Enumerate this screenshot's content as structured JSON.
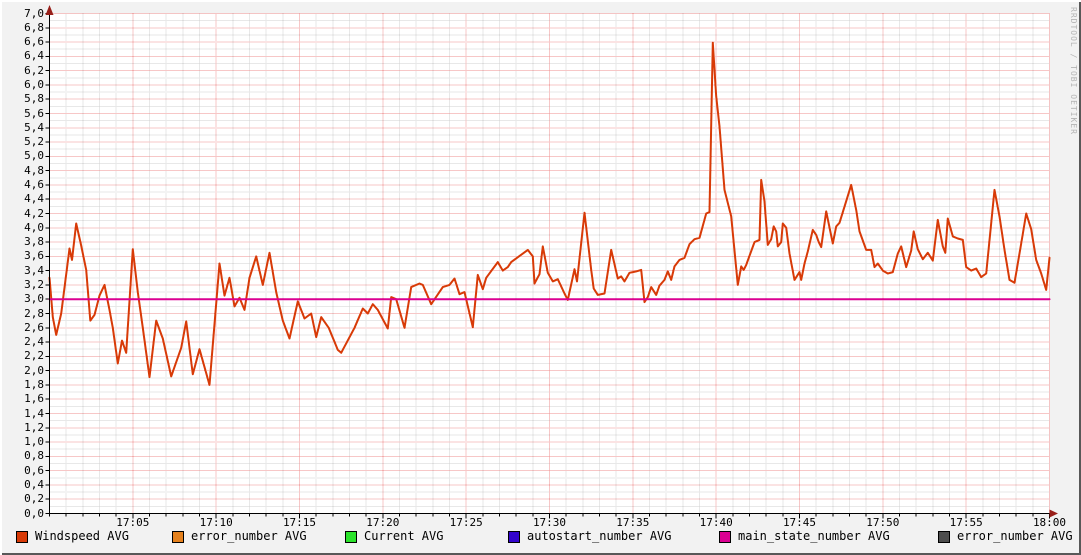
{
  "watermark": "RRDTOOL / TOBI OETIKER",
  "colors": {
    "background": "#f2f2f2",
    "plot_background": "#ffffff",
    "grid_major": "#ef8f8f",
    "grid_minor": "#d0d0d0",
    "axis": "#000000",
    "arrow": "#99201a",
    "text": "#000000",
    "watermark": "#b4b4b4"
  },
  "chart_data": {
    "type": "line",
    "title": "",
    "xlabel": "",
    "ylabel": "",
    "ylim": [
      0,
      7
    ],
    "xlim_minutes": [
      0,
      60
    ],
    "grid": true,
    "legend_position": "bottom",
    "y_ticks": [
      [
        0.0,
        "0,0"
      ],
      [
        0.2,
        "0,2"
      ],
      [
        0.4,
        "0,4"
      ],
      [
        0.6,
        "0,6"
      ],
      [
        0.8,
        "0,8"
      ],
      [
        1.0,
        "1,0"
      ],
      [
        1.2,
        "1,2"
      ],
      [
        1.4,
        "1,4"
      ],
      [
        1.6,
        "1,6"
      ],
      [
        1.8,
        "1,8"
      ],
      [
        2.0,
        "2,0"
      ],
      [
        2.2,
        "2,2"
      ],
      [
        2.4,
        "2,4"
      ],
      [
        2.6,
        "2,6"
      ],
      [
        2.8,
        "2,8"
      ],
      [
        3.0,
        "3,0"
      ],
      [
        3.2,
        "3,2"
      ],
      [
        3.4,
        "3,4"
      ],
      [
        3.6,
        "3,6"
      ],
      [
        3.8,
        "3,8"
      ],
      [
        4.0,
        "4,0"
      ],
      [
        4.2,
        "4,2"
      ],
      [
        4.4,
        "4,4"
      ],
      [
        4.6,
        "4,6"
      ],
      [
        4.8,
        "4,8"
      ],
      [
        5.0,
        "5,0"
      ],
      [
        5.2,
        "5,2"
      ],
      [
        5.4,
        "5,4"
      ],
      [
        5.6,
        "5,6"
      ],
      [
        5.8,
        "5,8"
      ],
      [
        6.0,
        "6,0"
      ],
      [
        6.2,
        "6,2"
      ],
      [
        6.4,
        "6,4"
      ],
      [
        6.6,
        "6,6"
      ],
      [
        6.8,
        "6,8"
      ],
      [
        7.0,
        "7,0"
      ]
    ],
    "x_ticks": [
      [
        5,
        "17:05"
      ],
      [
        10,
        "17:10"
      ],
      [
        15,
        "17:15"
      ],
      [
        20,
        "17:20"
      ],
      [
        25,
        "17:25"
      ],
      [
        30,
        "17:30"
      ],
      [
        35,
        "17:35"
      ],
      [
        40,
        "17:40"
      ],
      [
        45,
        "17:45"
      ],
      [
        50,
        "17:50"
      ],
      [
        55,
        "17:55"
      ],
      [
        60,
        "18:00"
      ]
    ],
    "y_minor_step": 0.1,
    "x_minor_step_minutes": 1,
    "series": [
      {
        "name": "Windspeed AVG",
        "color": "#d83a07",
        "width": 2,
        "points": [
          [
            0,
            3.3
          ],
          [
            0.2,
            2.75
          ],
          [
            0.4,
            2.5
          ],
          [
            0.7,
            2.8
          ],
          [
            1.0,
            3.35
          ],
          [
            1.2,
            3.71
          ],
          [
            1.35,
            3.55
          ],
          [
            1.6,
            4.06
          ],
          [
            1.9,
            3.75
          ],
          [
            2.2,
            3.41
          ],
          [
            2.45,
            2.7
          ],
          [
            2.7,
            2.78
          ],
          [
            3.0,
            3.05
          ],
          [
            3.3,
            3.2
          ],
          [
            3.6,
            2.85
          ],
          [
            3.8,
            2.6
          ],
          [
            4.1,
            2.1
          ],
          [
            4.35,
            2.42
          ],
          [
            4.6,
            2.25
          ],
          [
            5.0,
            3.7
          ],
          [
            5.3,
            3.1
          ],
          [
            5.6,
            2.6
          ],
          [
            6.0,
            1.91
          ],
          [
            6.4,
            2.7
          ],
          [
            6.8,
            2.45
          ],
          [
            7.3,
            1.92
          ],
          [
            7.9,
            2.32
          ],
          [
            8.2,
            2.69
          ],
          [
            8.6,
            1.95
          ],
          [
            9.0,
            2.3
          ],
          [
            9.6,
            1.8
          ],
          [
            10.2,
            3.5
          ],
          [
            10.5,
            3.05
          ],
          [
            10.8,
            3.3
          ],
          [
            11.1,
            2.9
          ],
          [
            11.4,
            3.02
          ],
          [
            11.7,
            2.85
          ],
          [
            12.0,
            3.3
          ],
          [
            12.4,
            3.6
          ],
          [
            12.8,
            3.2
          ],
          [
            13.2,
            3.65
          ],
          [
            13.6,
            3.1
          ],
          [
            14.0,
            2.7
          ],
          [
            14.4,
            2.45
          ],
          [
            14.9,
            2.97
          ],
          [
            15.3,
            2.73
          ],
          [
            15.7,
            2.8
          ],
          [
            16.0,
            2.47
          ],
          [
            16.3,
            2.75
          ],
          [
            16.75,
            2.6
          ],
          [
            17.3,
            2.29
          ],
          [
            17.5,
            2.25
          ],
          [
            18.3,
            2.6
          ],
          [
            18.8,
            2.87
          ],
          [
            19.1,
            2.8
          ],
          [
            19.4,
            2.93
          ],
          [
            19.7,
            2.85
          ],
          [
            20.3,
            2.59
          ],
          [
            20.5,
            3.03
          ],
          [
            20.8,
            3.0
          ],
          [
            21.3,
            2.6
          ],
          [
            21.7,
            3.17
          ],
          [
            22.2,
            3.22
          ],
          [
            22.4,
            3.2
          ],
          [
            22.9,
            2.93
          ],
          [
            23.6,
            3.17
          ],
          [
            24.0,
            3.2
          ],
          [
            24.3,
            3.29
          ],
          [
            24.6,
            3.07
          ],
          [
            24.9,
            3.1
          ],
          [
            25.4,
            2.61
          ],
          [
            25.7,
            3.34
          ],
          [
            26.0,
            3.14
          ],
          [
            26.2,
            3.3
          ],
          [
            26.9,
            3.52
          ],
          [
            27.2,
            3.4
          ],
          [
            27.5,
            3.45
          ],
          [
            27.7,
            3.52
          ],
          [
            28.7,
            3.69
          ],
          [
            29.0,
            3.6
          ],
          [
            29.1,
            3.22
          ],
          [
            29.4,
            3.35
          ],
          [
            29.6,
            3.74
          ],
          [
            29.9,
            3.37
          ],
          [
            30.2,
            3.25
          ],
          [
            30.5,
            3.28
          ],
          [
            30.9,
            3.08
          ],
          [
            31.1,
            2.99
          ],
          [
            31.5,
            3.42
          ],
          [
            31.65,
            3.25
          ],
          [
            32.1,
            4.21
          ],
          [
            32.5,
            3.41
          ],
          [
            32.65,
            3.15
          ],
          [
            32.9,
            3.06
          ],
          [
            33.3,
            3.08
          ],
          [
            33.7,
            3.69
          ],
          [
            34.1,
            3.29
          ],
          [
            34.3,
            3.32
          ],
          [
            34.5,
            3.25
          ],
          [
            34.8,
            3.37
          ],
          [
            35.2,
            3.39
          ],
          [
            35.5,
            3.41
          ],
          [
            35.7,
            2.96
          ],
          [
            35.9,
            3.03
          ],
          [
            36.1,
            3.17
          ],
          [
            36.4,
            3.06
          ],
          [
            36.6,
            3.19
          ],
          [
            36.9,
            3.27
          ],
          [
            37.1,
            3.39
          ],
          [
            37.3,
            3.27
          ],
          [
            37.5,
            3.46
          ],
          [
            37.8,
            3.55
          ],
          [
            38.1,
            3.58
          ],
          [
            38.4,
            3.77
          ],
          [
            38.7,
            3.84
          ],
          [
            39.0,
            3.86
          ],
          [
            39.4,
            4.2
          ],
          [
            39.6,
            4.22
          ],
          [
            39.8,
            6.59
          ],
          [
            40.0,
            5.84
          ],
          [
            40.2,
            5.42
          ],
          [
            40.5,
            4.53
          ],
          [
            40.9,
            4.16
          ],
          [
            41.3,
            3.2
          ],
          [
            41.5,
            3.46
          ],
          [
            41.65,
            3.41
          ],
          [
            41.8,
            3.48
          ],
          [
            42.3,
            3.8
          ],
          [
            42.6,
            3.83
          ],
          [
            42.7,
            4.67
          ],
          [
            42.9,
            4.37
          ],
          [
            43.1,
            3.76
          ],
          [
            43.3,
            3.84
          ],
          [
            43.45,
            4.02
          ],
          [
            43.6,
            3.95
          ],
          [
            43.7,
            3.74
          ],
          [
            43.9,
            3.8
          ],
          [
            44.0,
            4.06
          ],
          [
            44.2,
            4.0
          ],
          [
            44.4,
            3.64
          ],
          [
            44.7,
            3.27
          ],
          [
            45.0,
            3.38
          ],
          [
            45.1,
            3.27
          ],
          [
            45.3,
            3.5
          ],
          [
            45.5,
            3.67
          ],
          [
            45.8,
            3.97
          ],
          [
            46.0,
            3.9
          ],
          [
            46.15,
            3.8
          ],
          [
            46.3,
            3.73
          ],
          [
            46.6,
            4.23
          ],
          [
            47.0,
            3.78
          ],
          [
            47.2,
            4.02
          ],
          [
            47.4,
            4.07
          ],
          [
            48.1,
            4.6
          ],
          [
            48.4,
            4.25
          ],
          [
            48.6,
            3.95
          ],
          [
            49.0,
            3.69
          ],
          [
            49.3,
            3.69
          ],
          [
            49.5,
            3.45
          ],
          [
            49.7,
            3.5
          ],
          [
            50.0,
            3.4
          ],
          [
            50.3,
            3.36
          ],
          [
            50.6,
            3.38
          ],
          [
            50.9,
            3.64
          ],
          [
            51.1,
            3.74
          ],
          [
            51.4,
            3.45
          ],
          [
            51.7,
            3.68
          ],
          [
            51.85,
            3.95
          ],
          [
            52.1,
            3.7
          ],
          [
            52.4,
            3.56
          ],
          [
            52.7,
            3.65
          ],
          [
            53.0,
            3.54
          ],
          [
            53.3,
            4.11
          ],
          [
            53.6,
            3.74
          ],
          [
            53.75,
            3.65
          ],
          [
            53.9,
            4.13
          ],
          [
            54.2,
            3.88
          ],
          [
            54.5,
            3.85
          ],
          [
            54.8,
            3.83
          ],
          [
            55.0,
            3.45
          ],
          [
            55.3,
            3.4
          ],
          [
            55.6,
            3.43
          ],
          [
            55.9,
            3.31
          ],
          [
            56.2,
            3.36
          ],
          [
            56.7,
            4.53
          ],
          [
            57.0,
            4.16
          ],
          [
            57.3,
            3.69
          ],
          [
            57.6,
            3.27
          ],
          [
            57.9,
            3.23
          ],
          [
            58.3,
            3.78
          ],
          [
            58.6,
            4.2
          ],
          [
            58.9,
            3.98
          ],
          [
            59.2,
            3.55
          ],
          [
            59.5,
            3.36
          ],
          [
            59.8,
            3.13
          ],
          [
            60.0,
            3.58
          ]
        ]
      },
      {
        "name": "main_state_number AVG",
        "color": "#db0092",
        "width": 2,
        "points": [
          [
            0,
            3.0
          ],
          [
            60,
            3.0
          ]
        ]
      }
    ],
    "legend": [
      {
        "label": "Windspeed AVG",
        "color": "#d83a07"
      },
      {
        "label": "error_number AVG",
        "color": "#e5811d"
      },
      {
        "label": "Current AVG",
        "color": "#2be32b"
      },
      {
        "label": "autostart_number AVG",
        "color": "#3304cc"
      },
      {
        "label": "main_state_number AVG",
        "color": "#db0092"
      },
      {
        "label": "error_number AVG",
        "color": "#4d4d4d"
      }
    ]
  }
}
